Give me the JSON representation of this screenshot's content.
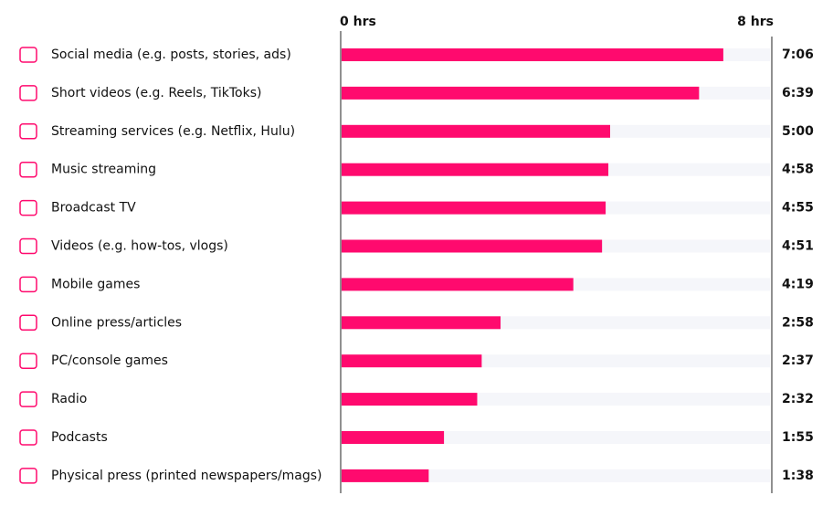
{
  "chart_data": {
    "type": "bar",
    "orientation": "horizontal",
    "categories": [
      "Social media (e.g. posts, stories, ads)",
      "Short videos (e.g. Reels, TikToks)",
      "Streaming services (e.g. Netflix, Hulu)",
      "Music streaming",
      "Broadcast TV",
      "Videos (e.g. how-tos, vlogs)",
      "Mobile games",
      "Online press/articles",
      "PC/console games",
      "Radio",
      "Podcasts",
      "Physical press (printed newspapers/mags)"
    ],
    "values": [
      7.1,
      6.65,
      5,
      4.9667,
      4.9167,
      4.85,
      4.3167,
      2.9667,
      2.6167,
      2.5333,
      1.9167,
      1.6333
    ],
    "value_labels": [
      "7:06",
      "6:39",
      "5:00",
      "4:58",
      "4:55",
      "4:51",
      "4:19",
      "2:58",
      "2:37",
      "2:32",
      "1:55",
      "1:38"
    ],
    "color": "#ff0a6e",
    "xlim": [
      0,
      8
    ],
    "xticks": [
      {
        "value": 0,
        "label": "0 hrs"
      },
      {
        "value": 8,
        "label": "8 hrs"
      }
    ]
  }
}
